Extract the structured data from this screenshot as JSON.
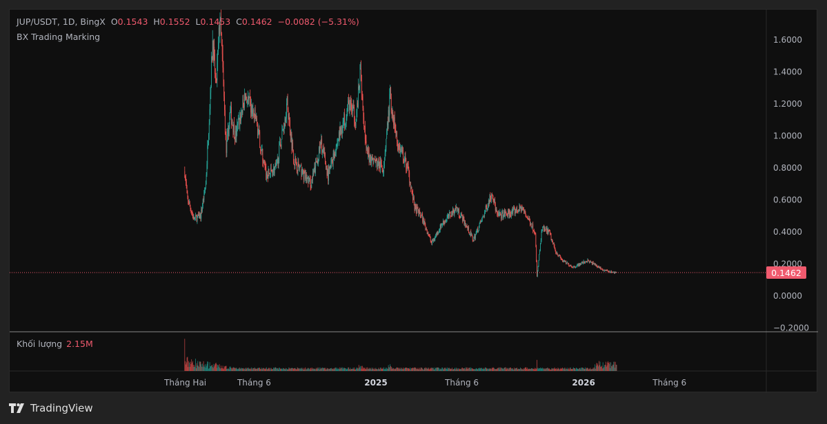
{
  "header": {
    "symbol": "JUP/USDT, 1D, BingX",
    "open_label": "O",
    "open": "0.1543",
    "high_label": "H",
    "high": "0.1552",
    "low_label": "L",
    "low": "0.1453",
    "close_label": "C",
    "close": "0.1462",
    "change": "−0.0082 (−5.31%)",
    "indicator": "BX Trading Marking"
  },
  "volume": {
    "label": "Khối lượng",
    "value": "2.15M"
  },
  "brand": {
    "name": "TradingView"
  },
  "colors": {
    "up": "#26a69a",
    "down": "#ef5350",
    "price_tag": "#f05a6e",
    "background": "#0f0f0f"
  },
  "chart_data": {
    "type": "candlestick",
    "timeframe": "1D",
    "last_price": 0.1462,
    "last_price_label": "0.1462",
    "ylim": [
      -0.2,
      1.8
    ],
    "y_ticks": [
      "1.6000",
      "1.4000",
      "1.2000",
      "1.0000",
      "0.8000",
      "0.6000",
      "0.4000",
      "0.2000",
      "0.0000",
      "−0.2000"
    ],
    "y_tick_values": [
      1.6,
      1.4,
      1.2,
      1.0,
      0.8,
      0.6,
      0.4,
      0.2,
      0.0,
      -0.2
    ],
    "x_ticks": [
      {
        "label": "Tháng Hai",
        "date": "2024-02-01",
        "bold": false
      },
      {
        "label": "Tháng 6",
        "date": "2024-06-01",
        "bold": false
      },
      {
        "label": "2025",
        "date": "2025-01-01",
        "bold": true
      },
      {
        "label": "Tháng 6",
        "date": "2025-06-01",
        "bold": false
      },
      {
        "label": "2026",
        "date": "2026-01-01",
        "bold": true
      },
      {
        "label": "Tháng 6",
        "date": "2026-06-01",
        "bold": false
      }
    ],
    "price_path": [
      [
        "2024-01-31",
        0.78
      ],
      [
        "2024-02-04",
        0.62
      ],
      [
        "2024-02-16",
        0.48
      ],
      [
        "2024-02-28",
        0.5
      ],
      [
        "2024-03-08",
        0.7
      ],
      [
        "2024-03-15",
        1.2
      ],
      [
        "2024-03-20",
        1.6
      ],
      [
        "2024-03-26",
        1.3
      ],
      [
        "2024-04-02",
        1.75
      ],
      [
        "2024-04-07",
        1.4
      ],
      [
        "2024-04-13",
        0.9
      ],
      [
        "2024-04-20",
        1.15
      ],
      [
        "2024-04-29",
        1.0
      ],
      [
        "2024-05-17",
        1.25
      ],
      [
        "2024-06-04",
        1.1
      ],
      [
        "2024-06-22",
        0.75
      ],
      [
        "2024-07-10",
        0.8
      ],
      [
        "2024-07-29",
        1.2
      ],
      [
        "2024-08-10",
        0.85
      ],
      [
        "2024-08-28",
        0.75
      ],
      [
        "2024-09-09",
        0.7
      ],
      [
        "2024-09-27",
        0.95
      ],
      [
        "2024-10-09",
        0.75
      ],
      [
        "2024-10-28",
        1.0
      ],
      [
        "2024-11-15",
        1.2
      ],
      [
        "2024-11-27",
        1.1
      ],
      [
        "2024-12-05",
        1.4
      ],
      [
        "2024-12-15",
        0.9
      ],
      [
        "2024-12-27",
        0.85
      ],
      [
        "2025-01-14",
        0.8
      ],
      [
        "2025-01-26",
        1.25
      ],
      [
        "2025-02-08",
        0.95
      ],
      [
        "2025-02-26",
        0.8
      ],
      [
        "2025-03-10",
        0.55
      ],
      [
        "2025-03-22",
        0.5
      ],
      [
        "2025-04-09",
        0.33
      ],
      [
        "2025-04-27",
        0.45
      ],
      [
        "2025-05-22",
        0.55
      ],
      [
        "2025-06-03",
        0.48
      ],
      [
        "2025-06-21",
        0.35
      ],
      [
        "2025-07-09",
        0.5
      ],
      [
        "2025-07-24",
        0.65
      ],
      [
        "2025-08-02",
        0.5
      ],
      [
        "2025-08-27",
        0.52
      ],
      [
        "2025-09-14",
        0.55
      ],
      [
        "2025-09-26",
        0.48
      ],
      [
        "2025-10-08",
        0.4
      ],
      [
        "2025-10-11",
        0.12
      ],
      [
        "2025-10-20",
        0.42
      ],
      [
        "2025-11-01",
        0.4
      ],
      [
        "2025-11-13",
        0.28
      ],
      [
        "2025-11-25",
        0.22
      ],
      [
        "2025-12-14",
        0.18
      ],
      [
        "2026-01-07",
        0.22
      ],
      [
        "2026-01-19",
        0.2
      ],
      [
        "2026-02-06",
        0.16
      ],
      [
        "2026-02-28",
        0.1462
      ]
    ]
  }
}
